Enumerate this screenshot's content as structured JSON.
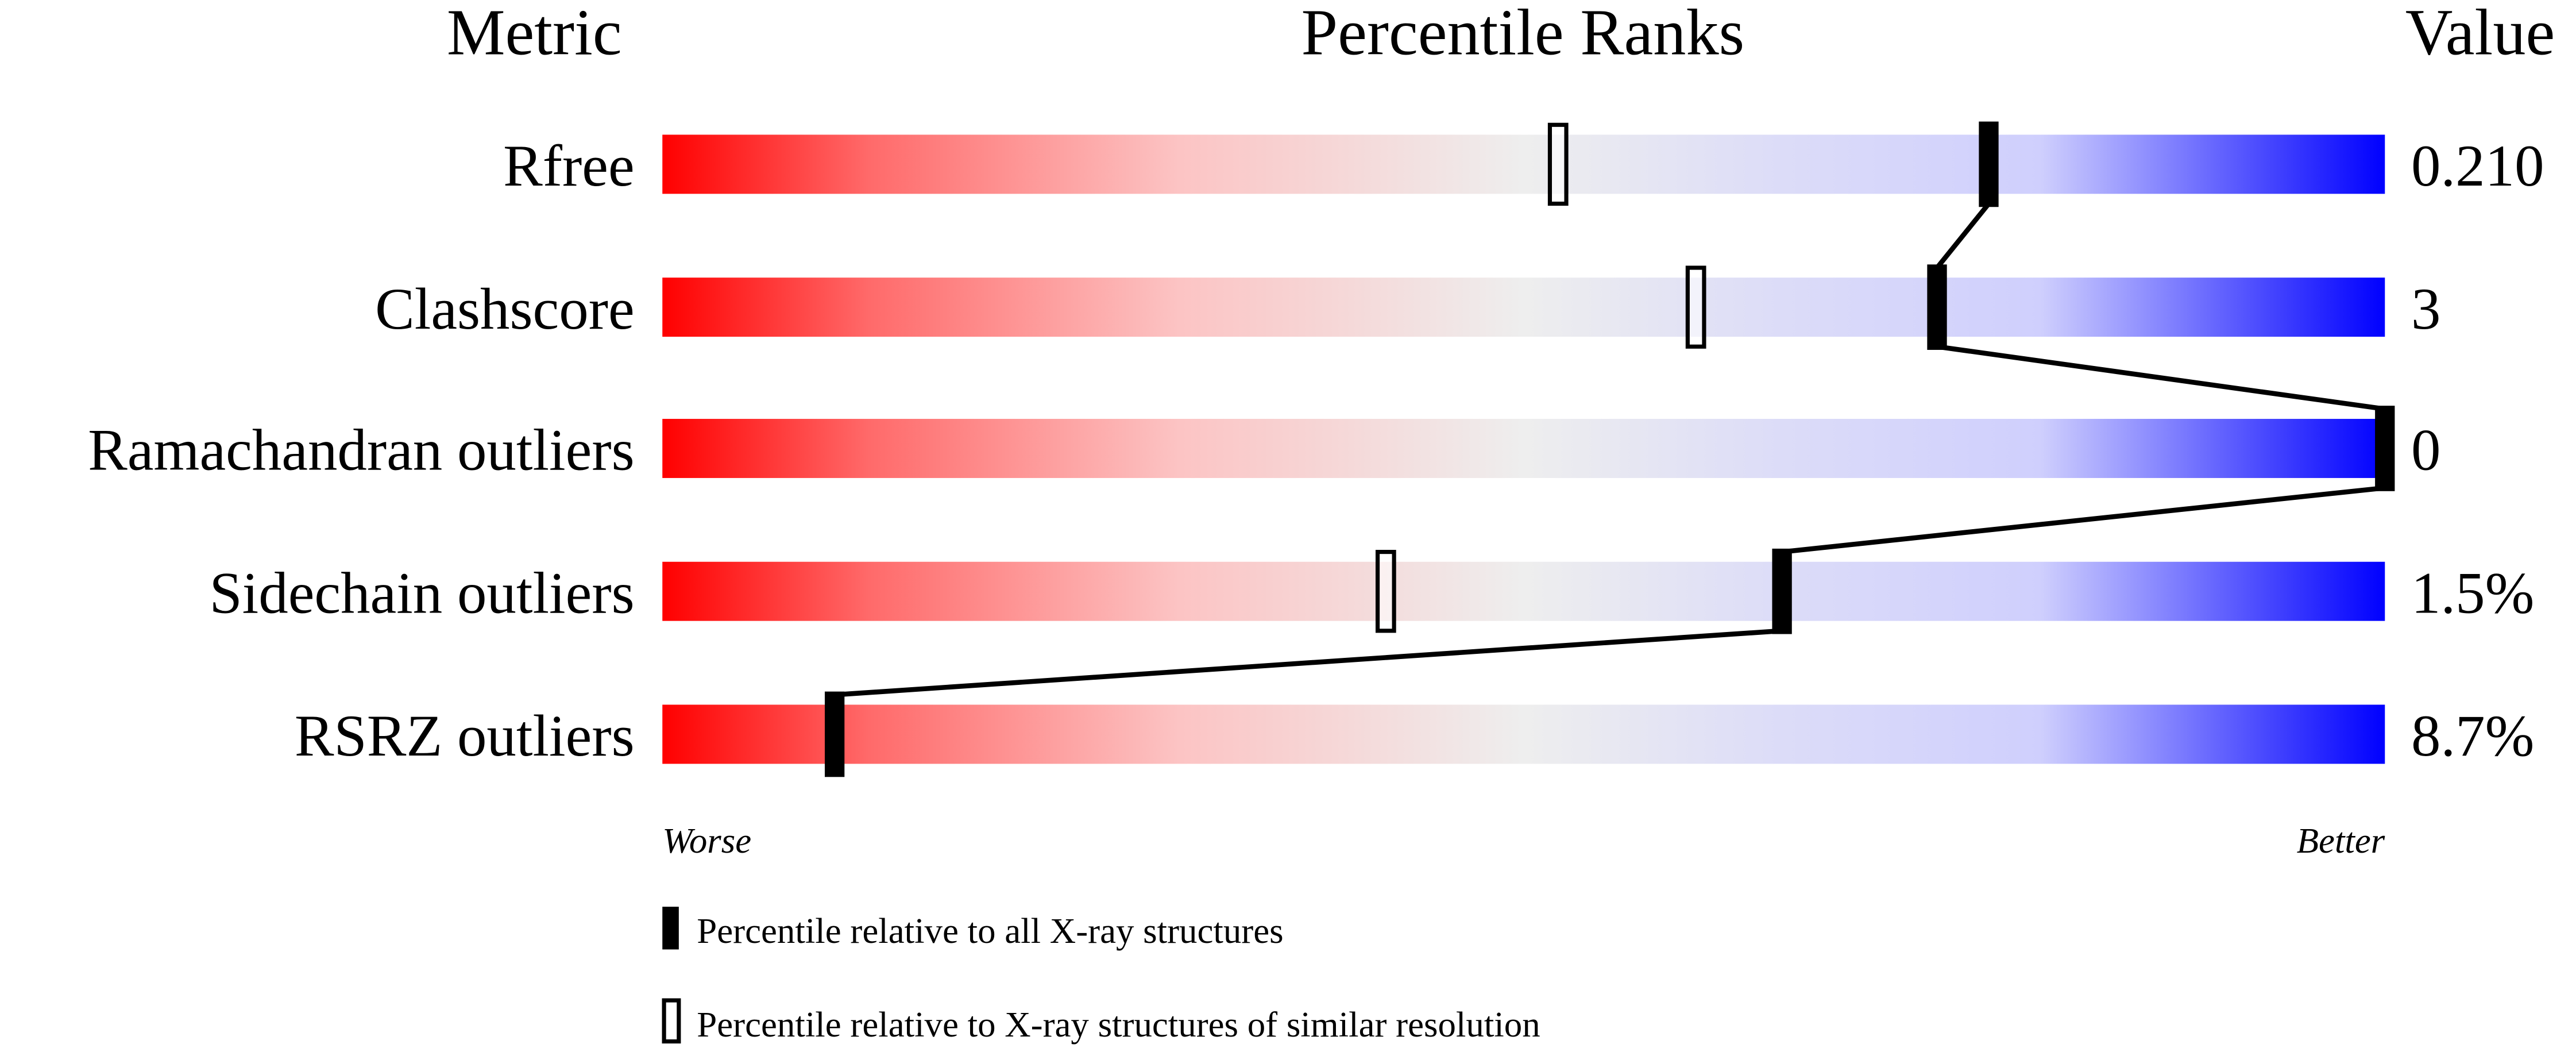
{
  "chart_data": {
    "type": "bar",
    "headers": {
      "metric": "Metric",
      "ranks": "Percentile Ranks",
      "value": "Value"
    },
    "axis": {
      "left_label": "Worse",
      "right_label": "Better",
      "range": [
        0,
        100
      ]
    },
    "rows": [
      {
        "metric": "Rfree",
        "value": "0.210",
        "percentile_all": 77,
        "percentile_similar": 52
      },
      {
        "metric": "Clashscore",
        "value": "3",
        "percentile_all": 74,
        "percentile_similar": 60
      },
      {
        "metric": "Ramachandran outliers",
        "value": "0",
        "percentile_all": 100,
        "percentile_similar": null
      },
      {
        "metric": "Sidechain outliers",
        "value": "1.5%",
        "percentile_all": 65,
        "percentile_similar": 42
      },
      {
        "metric": "RSRZ outliers",
        "value": "8.7%",
        "percentile_all": 10,
        "percentile_similar": null
      }
    ],
    "legend": [
      {
        "marker": "filled",
        "label": "Percentile relative to all X-ray structures"
      },
      {
        "marker": "open",
        "label": "Percentile relative to X-ray structures of similar resolution"
      }
    ],
    "colors": {
      "worse": "#ff0000",
      "middle": "#eeeeee",
      "better": "#0000ff"
    }
  }
}
